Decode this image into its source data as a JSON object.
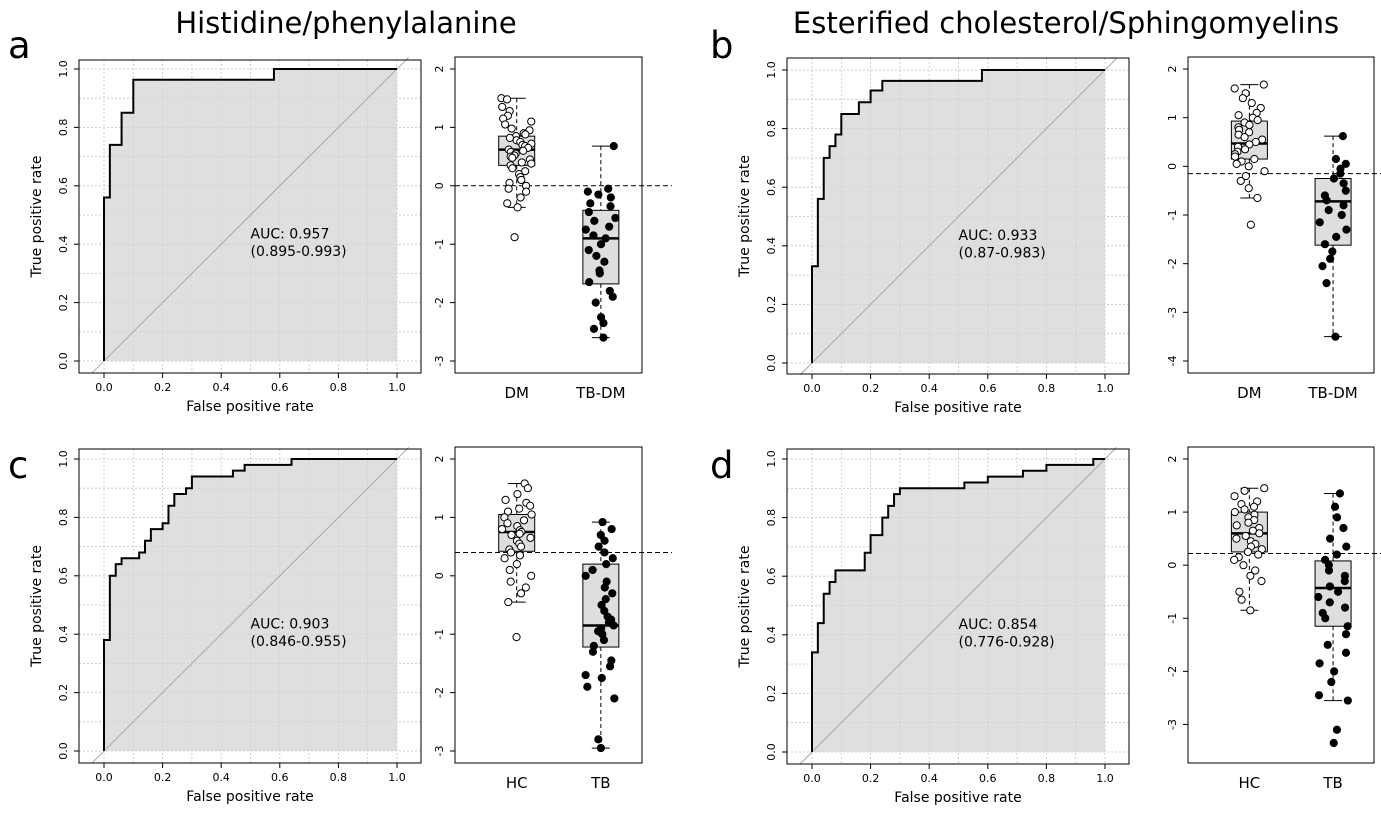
{
  "titles": [
    "Histidine/phenylalanine",
    "Esterified cholesterol/Sphingomyelins"
  ],
  "chart_data": [
    {
      "panel": "a",
      "roc": {
        "type": "line",
        "xlabel": "False positive rate",
        "ylabel": "True positive rate",
        "xlim": [
          0,
          1
        ],
        "ylim": [
          0,
          1
        ],
        "xticks": [
          "0.0",
          "0.2",
          "0.4",
          "0.6",
          "0.8",
          "1.0"
        ],
        "yticks": [
          "0.0",
          "0.2",
          "0.4",
          "0.6",
          "0.8",
          "1.0"
        ],
        "grid": true,
        "auc_label": "AUC: 0.957",
        "ci_label": "(0.895-0.993)",
        "points": [
          [
            0,
            0
          ],
          [
            0,
            0.56
          ],
          [
            0.02,
            0.56
          ],
          [
            0.02,
            0.74
          ],
          [
            0.06,
            0.74
          ],
          [
            0.06,
            0.85
          ],
          [
            0.1,
            0.85
          ],
          [
            0.1,
            0.963
          ],
          [
            0.58,
            0.963
          ],
          [
            0.58,
            1
          ],
          [
            1,
            1
          ]
        ]
      },
      "box": {
        "type": "box",
        "categories": [
          "DM",
          "TB-DM"
        ],
        "ylim": [
          -3,
          2
        ],
        "yticks": [
          "-3",
          "-2",
          "-1",
          "0",
          "1",
          "2"
        ],
        "threshold": 0,
        "groups": [
          {
            "q1": 0.35,
            "median": 0.62,
            "q3": 0.85,
            "whisker_low": -0.37,
            "whisker_high": 1.5,
            "points": [
              1.5,
              1.48,
              1.35,
              1.28,
              1.2,
              1.15,
              1.1,
              1.05,
              0.98,
              0.95,
              0.9,
              0.88,
              0.85,
              0.82,
              0.78,
              0.75,
              0.72,
              0.7,
              0.68,
              0.65,
              0.62,
              0.6,
              0.58,
              0.55,
              0.52,
              0.5,
              0.48,
              0.45,
              0.4,
              0.38,
              0.35,
              0.3,
              0.25,
              0.2,
              0.15,
              0.1,
              0.05,
              0.0,
              -0.05,
              -0.1,
              -0.2,
              -0.3,
              -0.37,
              -0.88
            ],
            "filled": false
          },
          {
            "q1": -1.68,
            "median": -0.9,
            "q3": -0.42,
            "whisker_low": -2.6,
            "whisker_high": 0.68,
            "points": [
              0.68,
              -0.05,
              -0.1,
              -0.15,
              -0.2,
              -0.3,
              -0.35,
              -0.45,
              -0.55,
              -0.6,
              -0.7,
              -0.75,
              -0.85,
              -0.9,
              -1.0,
              -1.1,
              -1.2,
              -1.3,
              -1.45,
              -1.5,
              -1.65,
              -1.8,
              -1.9,
              -2.0,
              -2.25,
              -2.35,
              -2.45,
              -2.6
            ],
            "filled": true
          }
        ]
      }
    },
    {
      "panel": "b",
      "roc": {
        "type": "line",
        "xlabel": "False positive rate",
        "ylabel": "True positive rate",
        "xlim": [
          0,
          1
        ],
        "ylim": [
          0,
          1
        ],
        "xticks": [
          "0.0",
          "0.2",
          "0.4",
          "0.6",
          "0.8",
          "1.0"
        ],
        "yticks": [
          "0.0",
          "0.2",
          "0.4",
          "0.6",
          "0.8",
          "1.0"
        ],
        "grid": true,
        "auc_label": "AUC: 0.933",
        "ci_label": "(0.87-0.983)",
        "points": [
          [
            0,
            0
          ],
          [
            0,
            0.33
          ],
          [
            0.02,
            0.33
          ],
          [
            0.02,
            0.56
          ],
          [
            0.04,
            0.56
          ],
          [
            0.04,
            0.7
          ],
          [
            0.06,
            0.7
          ],
          [
            0.06,
            0.74
          ],
          [
            0.08,
            0.74
          ],
          [
            0.08,
            0.78
          ],
          [
            0.1,
            0.78
          ],
          [
            0.1,
            0.85
          ],
          [
            0.16,
            0.85
          ],
          [
            0.16,
            0.89
          ],
          [
            0.2,
            0.89
          ],
          [
            0.2,
            0.93
          ],
          [
            0.24,
            0.93
          ],
          [
            0.24,
            0.963
          ],
          [
            0.58,
            0.963
          ],
          [
            0.58,
            1
          ],
          [
            1,
            1
          ]
        ]
      },
      "box": {
        "type": "box",
        "categories": [
          "DM",
          "TB-DM"
        ],
        "ylim": [
          -4,
          2
        ],
        "yticks": [
          "-4",
          "-3",
          "-2",
          "-1",
          "0",
          "1",
          "2"
        ],
        "threshold": -0.15,
        "groups": [
          {
            "q1": 0.15,
            "median": 0.47,
            "q3": 0.93,
            "whisker_low": -0.65,
            "whisker_high": 1.68,
            "points": [
              1.68,
              1.6,
              1.5,
              1.4,
              1.3,
              1.2,
              1.1,
              1.05,
              1.0,
              0.95,
              0.9,
              0.85,
              0.8,
              0.75,
              0.7,
              0.65,
              0.6,
              0.55,
              0.5,
              0.45,
              0.4,
              0.35,
              0.3,
              0.25,
              0.2,
              0.15,
              0.1,
              0.05,
              0.0,
              -0.1,
              -0.2,
              -0.3,
              -0.45,
              -0.65,
              -1.2
            ],
            "filled": false
          },
          {
            "q1": -1.62,
            "median": -0.72,
            "q3": -0.25,
            "whisker_low": -3.5,
            "whisker_high": 0.62,
            "points": [
              0.62,
              0.15,
              0.05,
              -0.05,
              -0.15,
              -0.25,
              -0.35,
              -0.5,
              -0.6,
              -0.7,
              -0.8,
              -0.9,
              -1.0,
              -1.15,
              -1.3,
              -1.45,
              -1.6,
              -1.75,
              -1.9,
              -2.05,
              -2.4,
              -3.5
            ],
            "filled": true
          }
        ]
      }
    },
    {
      "panel": "c",
      "roc": {
        "type": "line",
        "xlabel": "False positive rate",
        "ylabel": "True positive rate",
        "xlim": [
          0,
          1
        ],
        "ylim": [
          0,
          1
        ],
        "xticks": [
          "0.0",
          "0.2",
          "0.4",
          "0.6",
          "0.8",
          "1.0"
        ],
        "yticks": [
          "0.0",
          "0.2",
          "0.4",
          "0.6",
          "0.8",
          "1.0"
        ],
        "grid": true,
        "auc_label": "AUC: 0.903",
        "ci_label": "(0.846-0.955)",
        "points": [
          [
            0,
            0
          ],
          [
            0,
            0.38
          ],
          [
            0.02,
            0.38
          ],
          [
            0.02,
            0.6
          ],
          [
            0.04,
            0.6
          ],
          [
            0.04,
            0.64
          ],
          [
            0.06,
            0.64
          ],
          [
            0.06,
            0.66
          ],
          [
            0.12,
            0.66
          ],
          [
            0.12,
            0.68
          ],
          [
            0.14,
            0.68
          ],
          [
            0.14,
            0.72
          ],
          [
            0.16,
            0.72
          ],
          [
            0.16,
            0.76
          ],
          [
            0.2,
            0.76
          ],
          [
            0.2,
            0.78
          ],
          [
            0.22,
            0.78
          ],
          [
            0.22,
            0.84
          ],
          [
            0.24,
            0.84
          ],
          [
            0.24,
            0.88
          ],
          [
            0.28,
            0.88
          ],
          [
            0.28,
            0.9
          ],
          [
            0.3,
            0.9
          ],
          [
            0.3,
            0.94
          ],
          [
            0.44,
            0.94
          ],
          [
            0.44,
            0.96
          ],
          [
            0.48,
            0.96
          ],
          [
            0.48,
            0.98
          ],
          [
            0.64,
            0.98
          ],
          [
            0.64,
            1
          ],
          [
            1,
            1
          ]
        ]
      },
      "box": {
        "type": "box",
        "categories": [
          "HC",
          "TB"
        ],
        "ylim": [
          -3,
          2
        ],
        "yticks": [
          "-3",
          "-2",
          "-1",
          "0",
          "1",
          "2"
        ],
        "threshold": 0.4,
        "groups": [
          {
            "q1": 0.42,
            "median": 0.75,
            "q3": 1.05,
            "whisker_low": -0.45,
            "whisker_high": 1.58,
            "points": [
              1.58,
              1.5,
              1.4,
              1.3,
              1.25,
              1.2,
              1.15,
              1.1,
              1.05,
              1.0,
              0.95,
              0.9,
              0.85,
              0.8,
              0.78,
              0.75,
              0.72,
              0.7,
              0.65,
              0.6,
              0.55,
              0.5,
              0.45,
              0.4,
              0.35,
              0.3,
              0.2,
              0.1,
              0.0,
              -0.1,
              -0.2,
              -0.3,
              -0.45,
              -1.05
            ],
            "filled": false
          },
          {
            "q1": -1.22,
            "median": -0.85,
            "q3": 0.2,
            "whisker_low": -2.95,
            "whisker_high": 0.92,
            "points": [
              0.92,
              0.8,
              0.7,
              0.6,
              0.5,
              0.4,
              0.3,
              0.2,
              0.1,
              0.0,
              -0.1,
              -0.2,
              -0.3,
              -0.4,
              -0.5,
              -0.6,
              -0.7,
              -0.75,
              -0.8,
              -0.85,
              -0.9,
              -0.95,
              -1.0,
              -1.1,
              -1.2,
              -1.3,
              -1.45,
              -1.55,
              -1.7,
              -1.75,
              -1.9,
              -2.1,
              -2.8,
              -2.95
            ],
            "filled": true
          }
        ]
      }
    },
    {
      "panel": "d",
      "roc": {
        "type": "line",
        "xlabel": "False positive rate",
        "ylabel": "True positive rate",
        "xlim": [
          0,
          1
        ],
        "ylim": [
          0,
          1
        ],
        "xticks": [
          "0.0",
          "0.2",
          "0.4",
          "0.6",
          "0.8",
          "1.0"
        ],
        "yticks": [
          "0.0",
          "0.2",
          "0.4",
          "0.6",
          "0.8",
          "1.0"
        ],
        "grid": true,
        "auc_label": "AUC: 0.854",
        "ci_label": "(0.776-0.928)",
        "points": [
          [
            0,
            0
          ],
          [
            0,
            0.34
          ],
          [
            0.02,
            0.34
          ],
          [
            0.02,
            0.44
          ],
          [
            0.04,
            0.44
          ],
          [
            0.04,
            0.54
          ],
          [
            0.06,
            0.54
          ],
          [
            0.06,
            0.58
          ],
          [
            0.08,
            0.58
          ],
          [
            0.08,
            0.62
          ],
          [
            0.18,
            0.62
          ],
          [
            0.18,
            0.68
          ],
          [
            0.2,
            0.68
          ],
          [
            0.2,
            0.74
          ],
          [
            0.24,
            0.74
          ],
          [
            0.24,
            0.8
          ],
          [
            0.26,
            0.8
          ],
          [
            0.26,
            0.84
          ],
          [
            0.28,
            0.84
          ],
          [
            0.28,
            0.88
          ],
          [
            0.3,
            0.88
          ],
          [
            0.3,
            0.9
          ],
          [
            0.52,
            0.9
          ],
          [
            0.52,
            0.92
          ],
          [
            0.6,
            0.92
          ],
          [
            0.6,
            0.94
          ],
          [
            0.72,
            0.94
          ],
          [
            0.72,
            0.96
          ],
          [
            0.8,
            0.96
          ],
          [
            0.8,
            0.98
          ],
          [
            0.96,
            0.98
          ],
          [
            0.96,
            1
          ],
          [
            1,
            1
          ]
        ]
      },
      "box": {
        "type": "box",
        "categories": [
          "HC",
          "TB"
        ],
        "ylim": [
          -3.5,
          2
        ],
        "yticks": [
          "-3",
          "-2",
          "-1",
          "0",
          "1",
          "2"
        ],
        "threshold": 0.22,
        "groups": [
          {
            "q1": 0.25,
            "median": 0.6,
            "q3": 1.0,
            "whisker_low": -0.85,
            "whisker_high": 1.45,
            "points": [
              1.45,
              1.4,
              1.3,
              1.2,
              1.15,
              1.1,
              1.05,
              1.0,
              0.95,
              0.9,
              0.85,
              0.8,
              0.75,
              0.7,
              0.65,
              0.6,
              0.55,
              0.5,
              0.45,
              0.4,
              0.35,
              0.3,
              0.25,
              0.2,
              0.15,
              0.1,
              0.0,
              -0.1,
              -0.2,
              -0.3,
              -0.5,
              -0.65,
              -0.85
            ],
            "filled": false
          },
          {
            "q1": -1.15,
            "median": -0.43,
            "q3": 0.08,
            "whisker_low": -2.55,
            "whisker_high": 1.35,
            "points": [
              1.35,
              1.1,
              0.9,
              0.7,
              0.5,
              0.35,
              0.2,
              0.1,
              0.0,
              -0.1,
              -0.2,
              -0.3,
              -0.4,
              -0.5,
              -0.6,
              -0.7,
              -0.8,
              -0.9,
              -1.0,
              -1.15,
              -1.3,
              -1.5,
              -1.65,
              -1.85,
              -2.0,
              -2.2,
              -2.45,
              -2.55,
              -3.1,
              -3.35
            ],
            "filled": true
          }
        ]
      }
    }
  ]
}
